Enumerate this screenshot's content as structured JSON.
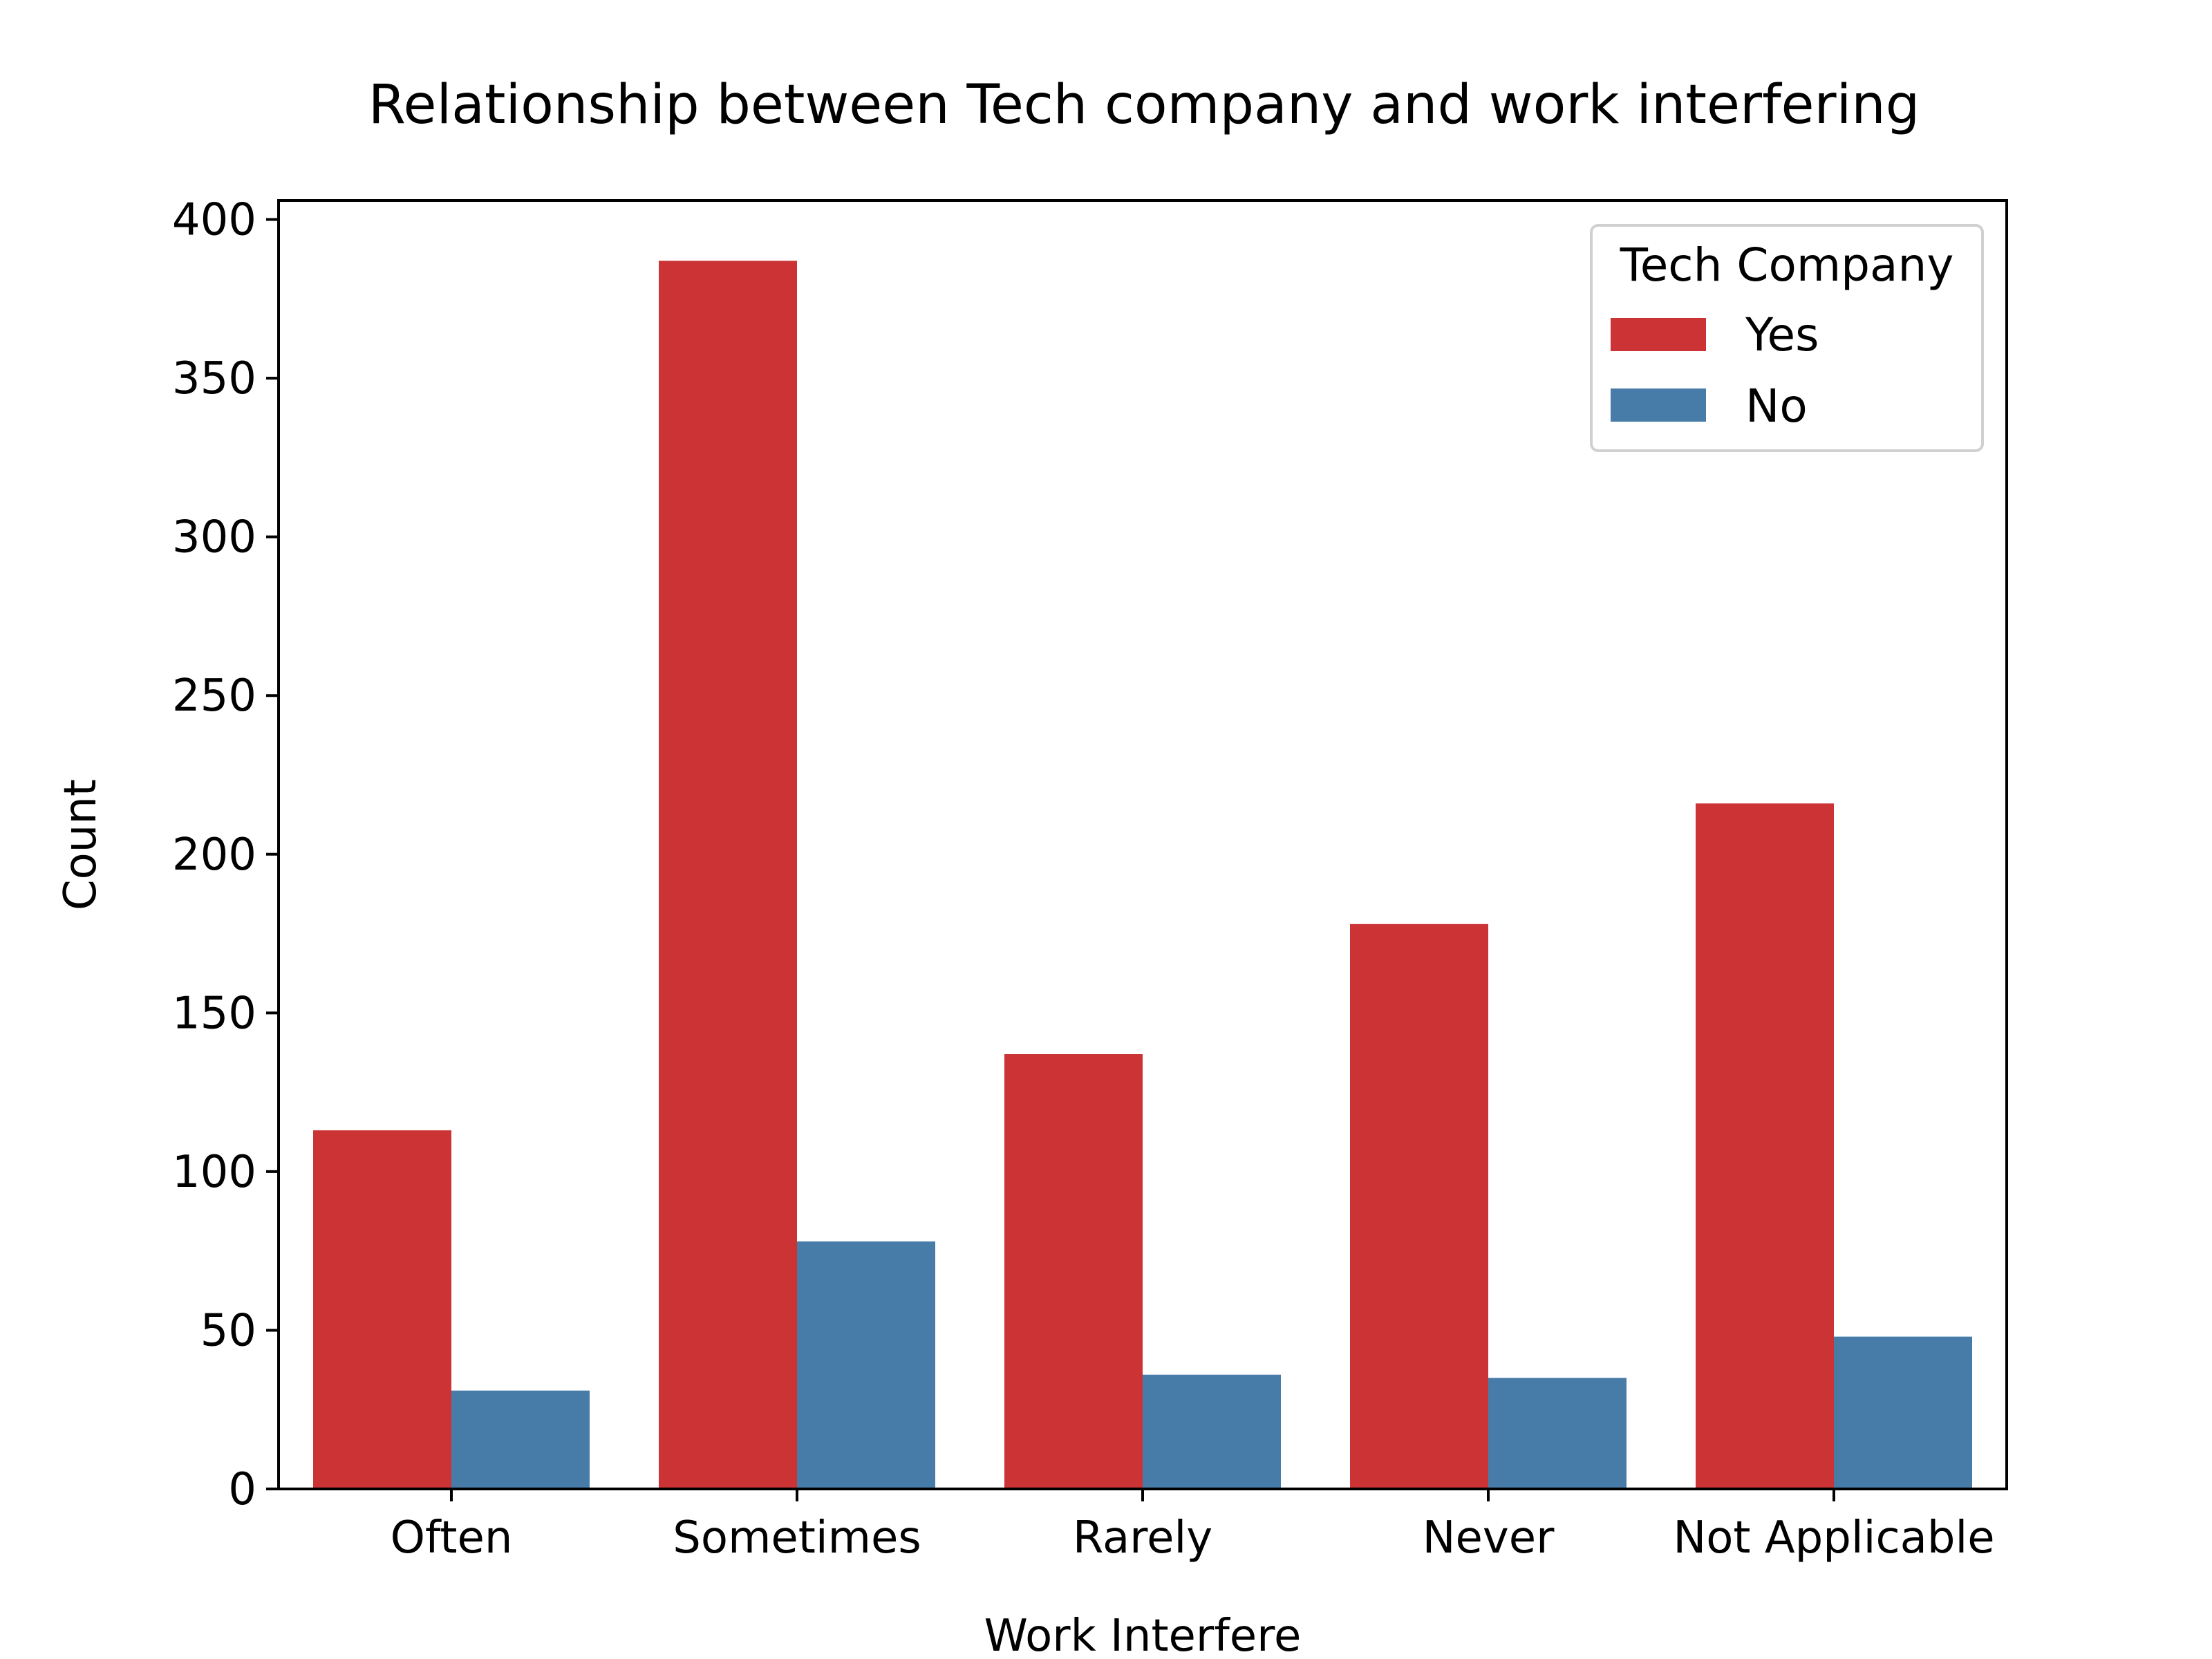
{
  "chart_data": {
    "type": "bar",
    "title": "Relationship between Tech company and work interfering",
    "xlabel": "Work Interfere",
    "ylabel": "Count",
    "categories": [
      "Often",
      "Sometimes",
      "Rarely",
      "Never",
      "Not Applicable"
    ],
    "series": [
      {
        "name": "Yes",
        "color": "#cb3335",
        "values": [
          113,
          387,
          137,
          178,
          216
        ]
      },
      {
        "name": "No",
        "color": "#477ca8",
        "values": [
          31,
          78,
          36,
          35,
          48
        ]
      }
    ],
    "ylim": [
      0,
      406
    ],
    "yticks": [
      0,
      50,
      100,
      150,
      200,
      250,
      300,
      350,
      400
    ],
    "grid": false,
    "legend": {
      "title": "Tech Company",
      "position": "top-right"
    }
  }
}
